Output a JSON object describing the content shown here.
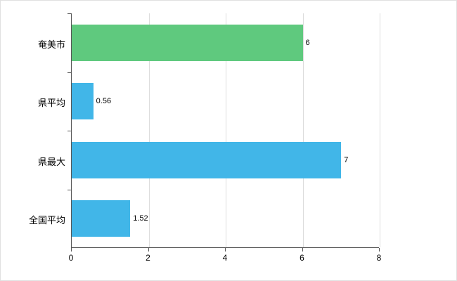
{
  "chart_data": {
    "type": "bar",
    "orientation": "horizontal",
    "title": "",
    "xlabel": "",
    "ylabel": "",
    "categories": [
      "奄美市",
      "県平均",
      "県最大",
      "全国平均"
    ],
    "values": [
      6,
      0.56,
      7,
      1.52
    ],
    "value_labels": [
      "6",
      "0.56",
      "7",
      "1.52"
    ],
    "bar_colors": [
      "#5fc97e",
      "#41b6e8",
      "#41b6e8",
      "#41b6e8"
    ],
    "xlim": [
      0,
      8
    ],
    "x_ticks": [
      "0",
      "2",
      "4",
      "6",
      "8"
    ],
    "x_tick_values": [
      0,
      2,
      4,
      6,
      8
    ],
    "grid": true,
    "legend": "none"
  },
  "colors": {
    "axis": "#555555",
    "gridline": "#dcdcdc",
    "background": "#ffffff",
    "green_bar": "#5fc97e",
    "blue_bar": "#41b6e8"
  }
}
